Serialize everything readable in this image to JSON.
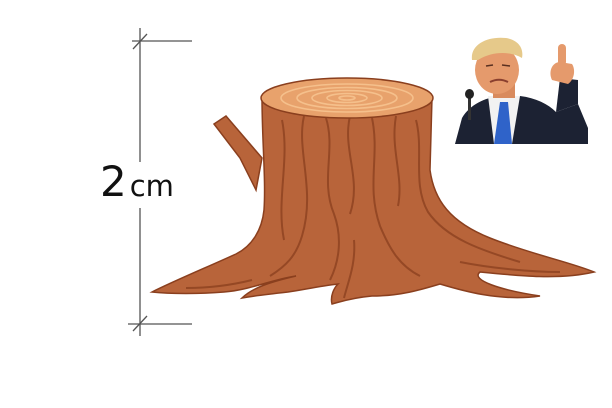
{
  "measurement": {
    "value": "2",
    "unit": "cm"
  },
  "colors": {
    "bark": "#b8643a",
    "bark_dark": "#8a3f1e",
    "bark_light": "#d9895a",
    "top_face": "#e8a26c",
    "rings": "#f5c08c",
    "dimension_line": "#555555",
    "suit": "#1c2233",
    "tie": "#2f63c9",
    "skin": "#e59a6c",
    "hair": "#e6c98a"
  },
  "images": {
    "stump": "tree-stump-illustration",
    "person_photo": "man-in-suit-pointing-photo"
  }
}
